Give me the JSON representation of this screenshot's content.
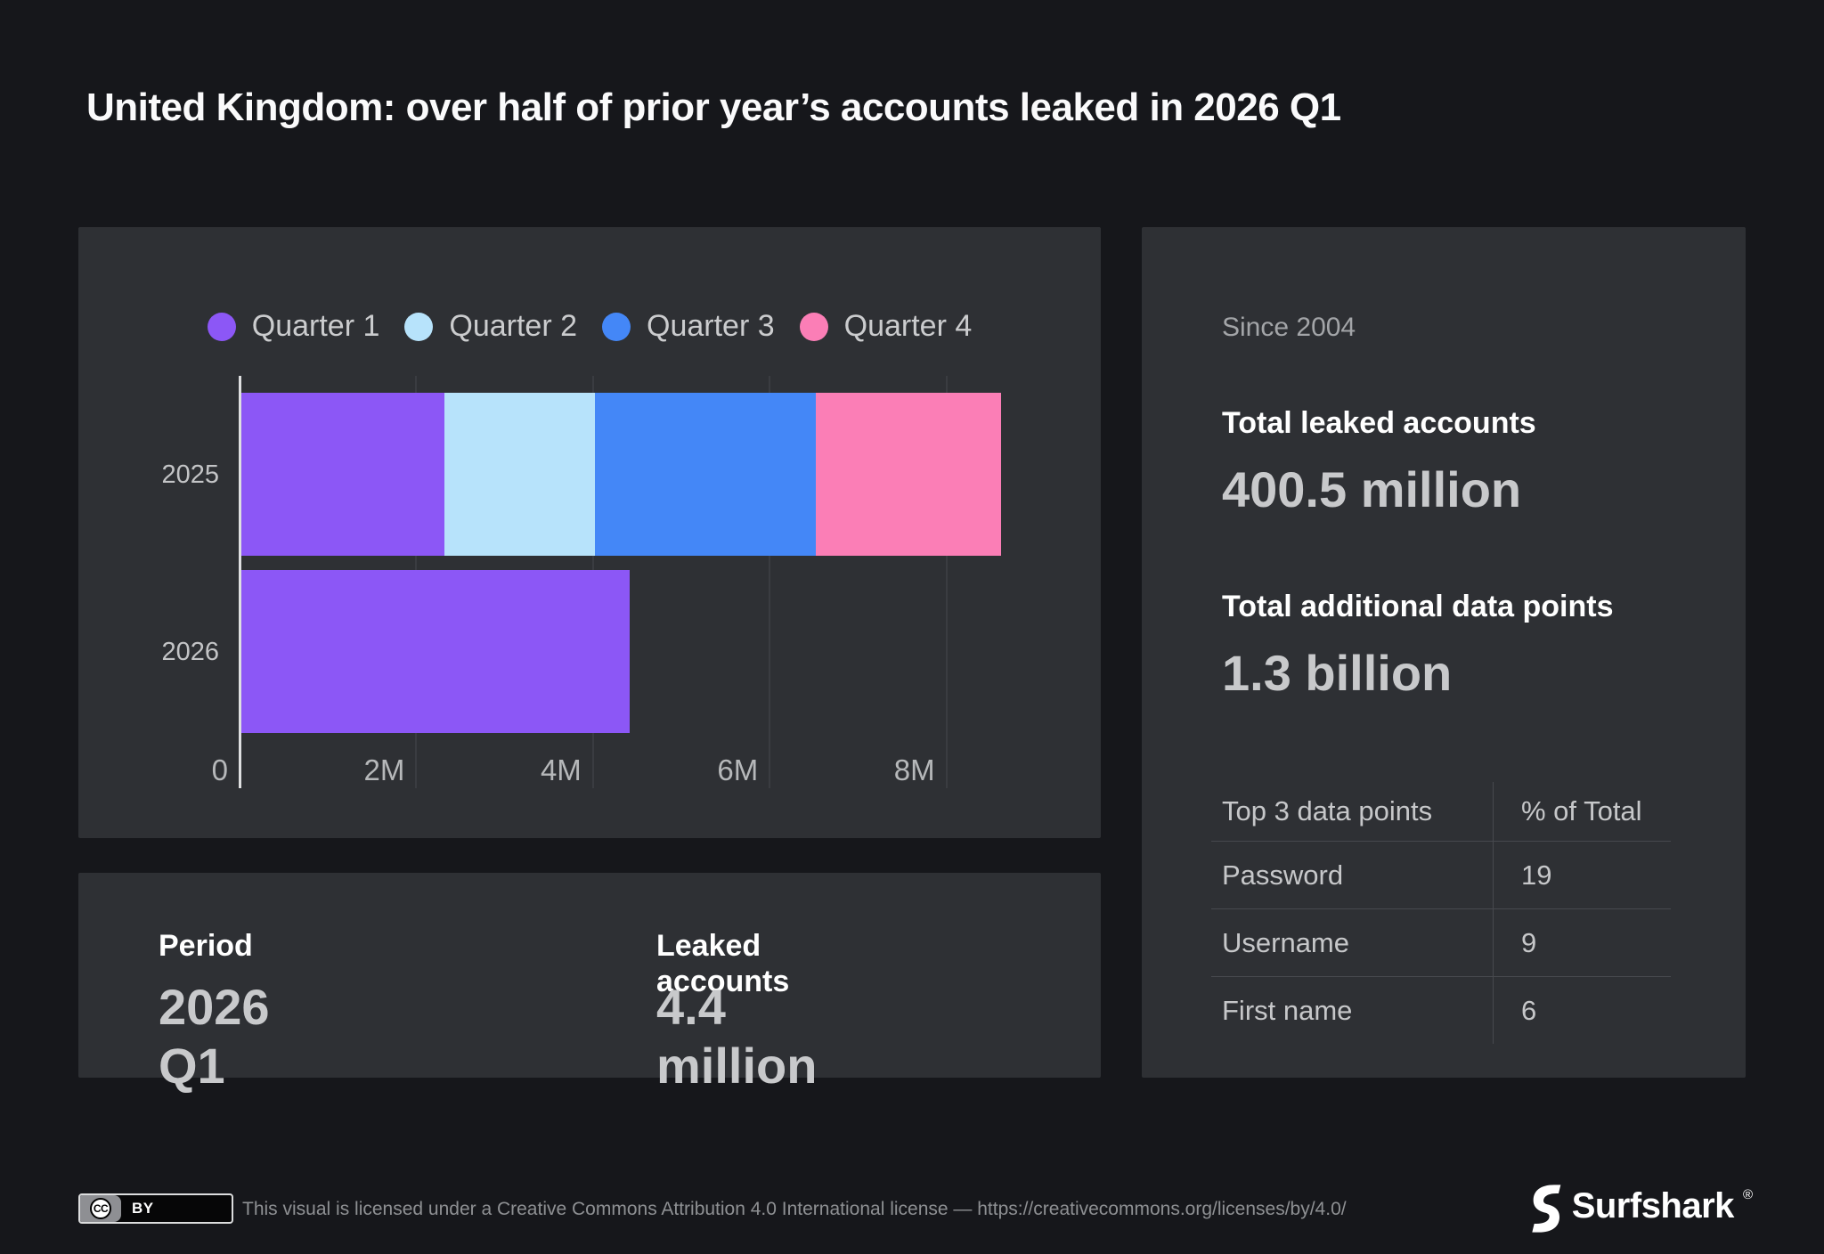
{
  "title": "United Kingdom: over half of prior year’s accounts leaked in 2026 Q1",
  "chart_data": {
    "type": "bar",
    "orientation": "horizontal",
    "stacked": true,
    "categories": [
      "2025",
      "2026"
    ],
    "series": [
      {
        "name": "Quarter 1",
        "color": "#8C57F6",
        "values": [
          2.3,
          4.4
        ]
      },
      {
        "name": "Quarter 2",
        "color": "#B7E3FB",
        "values": [
          1.7,
          0
        ]
      },
      {
        "name": "Quarter 3",
        "color": "#4487F7",
        "values": [
          2.5,
          0
        ]
      },
      {
        "name": "Quarter 4",
        "color": "#FB7EB6",
        "values": [
          2.1,
          0
        ]
      }
    ],
    "totals": {
      "2025": 8.6,
      "2026": 4.4
    },
    "x_unit": "accounts (millions)",
    "x_ticks": [
      {
        "value": 0,
        "label": "0"
      },
      {
        "value": 2,
        "label": "2M"
      },
      {
        "value": 4,
        "label": "4M"
      },
      {
        "value": 6,
        "label": "6M"
      },
      {
        "value": 8,
        "label": "8M"
      }
    ],
    "xlim": [
      0,
      10.1
    ],
    "grid": true,
    "legend_position": "top"
  },
  "summary_panel": {
    "period_label": "Period",
    "period_value": "2026 Q1",
    "leaked_label": "Leaked accounts",
    "leaked_value": "4.4 million"
  },
  "stats_panel": {
    "since": "Since 2004",
    "total_accounts_label": "Total leaked accounts",
    "total_accounts_value": "400.5 million",
    "total_datapoints_label": "Total additional data points",
    "total_datapoints_value": "1.3 billion",
    "table": {
      "headers": [
        "Top 3 data points",
        "% of Total"
      ],
      "rows": [
        {
          "label": "Password",
          "value": "19"
        },
        {
          "label": "Username",
          "value": "9"
        },
        {
          "label": "First name",
          "value": "6"
        }
      ]
    }
  },
  "footer": {
    "badge": {
      "icon": "CC",
      "label": "BY"
    },
    "license_text": "This visual is licensed under a Creative Commons Attribution 4.0 International license — https://creativecommons.org/licenses/by/4.0/",
    "brand": "Surfshark",
    "registered_mark": "®"
  },
  "colors": {
    "background": "#16171B",
    "panel": "#2E3034",
    "accent_purple": "#8C57F6",
    "text_primary": "#FFFFFF",
    "text_value": "#C8C9CB",
    "text_muted": "#A3A5A8"
  }
}
